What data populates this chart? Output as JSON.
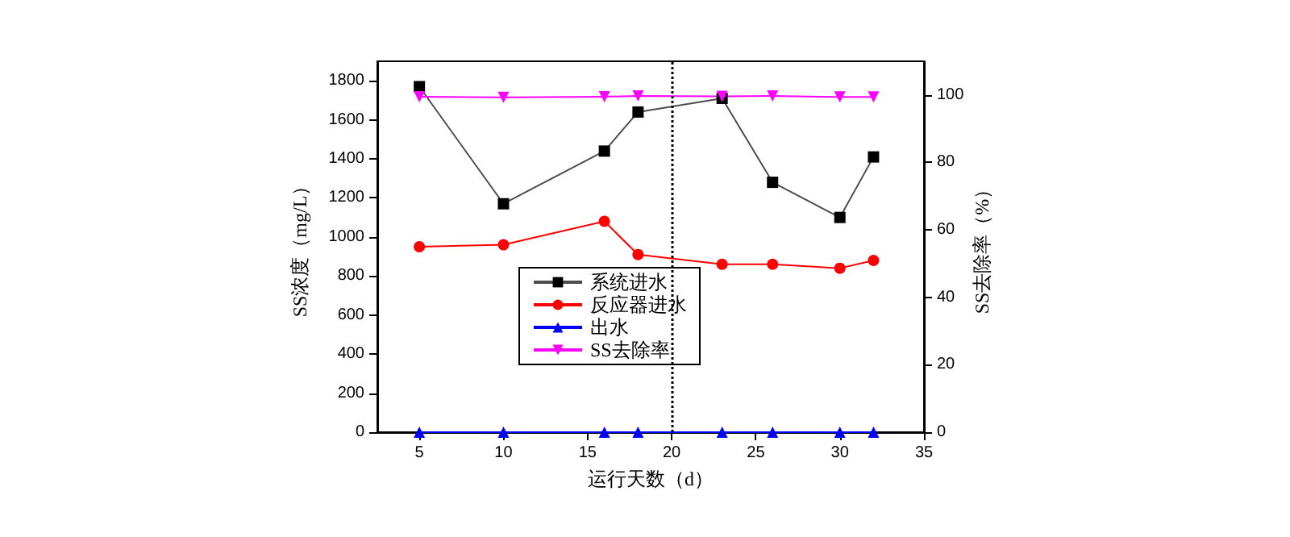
{
  "chart_data": {
    "type": "line",
    "xlabel": "运行天数（d）",
    "ylabel": "SS浓度（mg/L）",
    "y2label": "SS去除率（%）",
    "x": [
      5,
      10,
      16,
      18,
      23,
      26,
      30,
      32
    ],
    "series": [
      {
        "name": "系统进水",
        "color": "#000000",
        "marker": "square",
        "values": [
          1770,
          1170,
          1440,
          1640,
          1710,
          1280,
          1100,
          1410
        ]
      },
      {
        "name": "反应器进水",
        "color": "#ff0000",
        "marker": "circle",
        "values": [
          950,
          960,
          1080,
          910,
          860,
          860,
          840,
          880
        ]
      },
      {
        "name": "出水",
        "color": "#0000ff",
        "marker": "triangle",
        "values": [
          0,
          0,
          0,
          0,
          0,
          0,
          0,
          0
        ]
      },
      {
        "name": "SS去除率",
        "color": "#ff00ff",
        "marker": "triangle-down",
        "axis": "y2",
        "values": [
          99.5,
          99.3,
          99.5,
          99.7,
          99.6,
          99.7,
          99.4,
          99.4
        ]
      }
    ],
    "xlim": [
      2.5,
      35
    ],
    "xticks": [
      5,
      10,
      15,
      20,
      25,
      30,
      35
    ],
    "ylim": [
      0,
      1900
    ],
    "yticks": [
      0,
      200,
      400,
      600,
      800,
      1000,
      1200,
      1400,
      1600,
      1800
    ],
    "y2lim": [
      0,
      110
    ],
    "y2ticks": [
      0,
      20,
      40,
      60,
      80,
      100
    ],
    "ref_lines": [
      {
        "axis": "x",
        "value": 20,
        "color": "#000000",
        "line_style": "dotted"
      }
    ],
    "legend": "left",
    "grid": false
  }
}
